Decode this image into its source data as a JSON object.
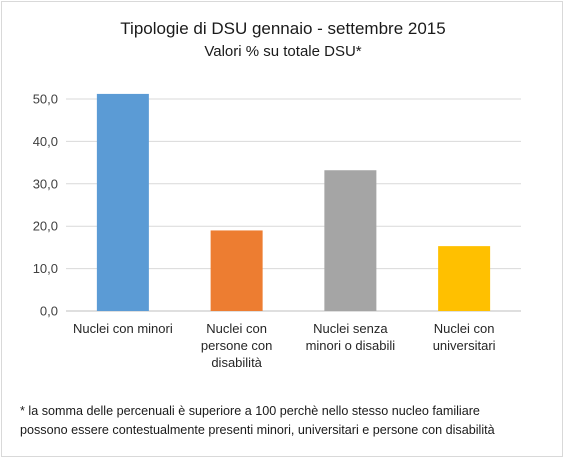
{
  "chart_data": {
    "type": "bar",
    "title": "Tipologie di DSU gennaio - settembre  2015",
    "subtitle": "Valori % su totale DSU*",
    "categories": [
      [
        "Nuclei con minori"
      ],
      [
        "Nuclei con",
        "persone con",
        "disabilità"
      ],
      [
        "Nuclei senza",
        "minori o disabili"
      ],
      [
        "Nuclei con",
        "universitari"
      ]
    ],
    "values": [
      51.2,
      19.0,
      33.2,
      15.3
    ],
    "colors": [
      "#5b9bd5",
      "#ed7d31",
      "#a5a5a5",
      "#ffc000"
    ],
    "ylim": [
      0,
      50
    ],
    "yticks": [
      "0,0",
      "10,0",
      "20,0",
      "30,0",
      "40,0",
      "50,0"
    ],
    "grid": true,
    "legend": "none",
    "xlabel": "",
    "ylabel": ""
  },
  "footnote": [
    "* la somma delle percenuali è superiore a 100 perchè nello stesso nucleo  familiare",
    "possono essere contestualmente presenti minori, universitari e persone con disabilità"
  ]
}
